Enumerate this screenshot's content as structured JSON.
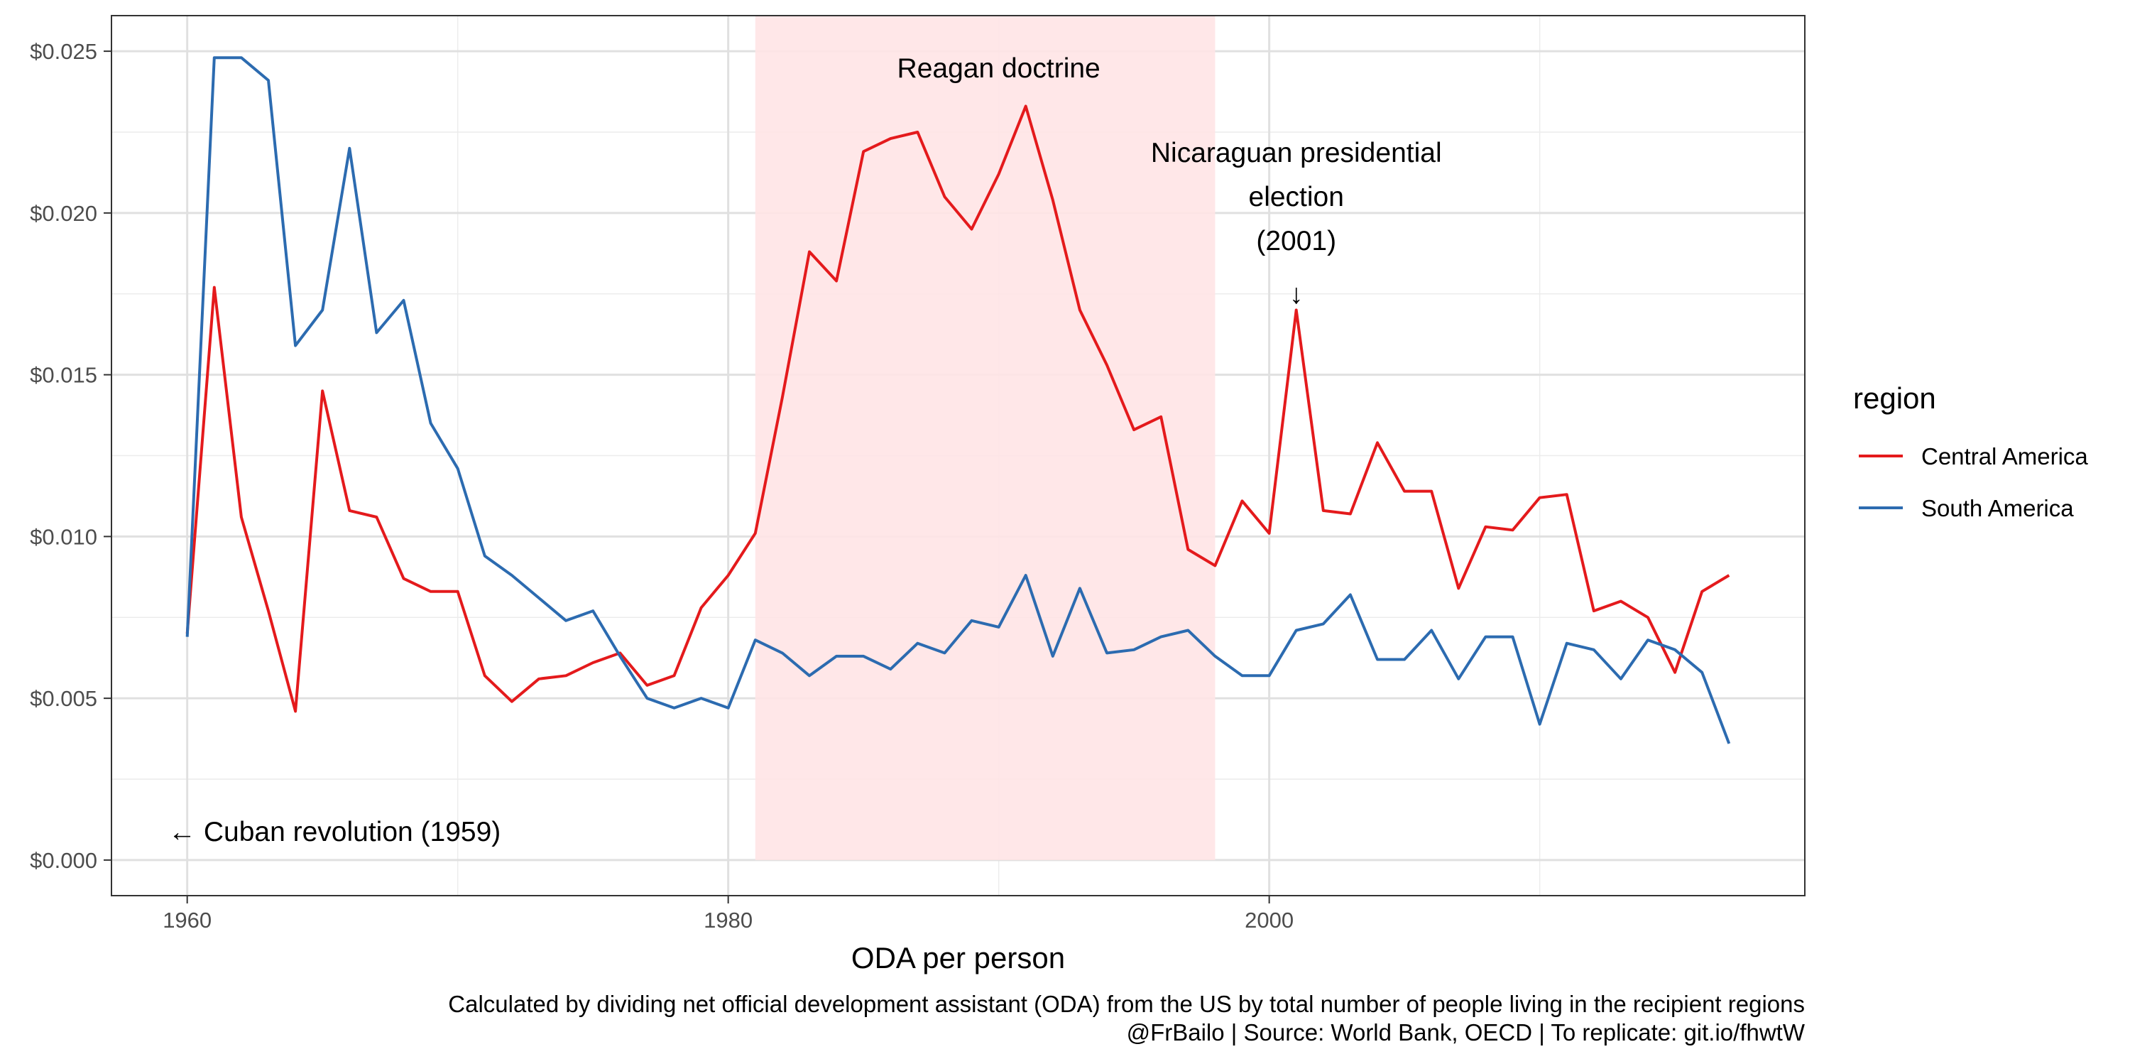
{
  "chart_data": {
    "type": "line",
    "title": "",
    "xlabel": "ODA per person",
    "ylabel": "",
    "xlim": [
      1957.2,
      2019.8
    ],
    "ylim": [
      -0.0011,
      0.0261
    ],
    "x_ticks": [
      1960,
      1980,
      2000
    ],
    "x_tick_labels": [
      "1960",
      "1980",
      "2000"
    ],
    "y_ticks": [
      0,
      0.005,
      0.01,
      0.015,
      0.02,
      0.025
    ],
    "y_tick_labels": [
      "$0.000",
      "$0.005",
      "$0.010",
      "$0.015",
      "$0.020",
      "$0.025"
    ],
    "grid": true,
    "legend": {
      "title": "region",
      "position": "right"
    },
    "series": [
      {
        "name": "Central America",
        "color": "#E41A1C",
        "x": [
          1960,
          1961,
          1962,
          1963,
          1964,
          1965,
          1966,
          1967,
          1968,
          1969,
          1970,
          1971,
          1972,
          1973,
          1974,
          1975,
          1976,
          1977,
          1978,
          1979,
          1980,
          1981,
          1982,
          1983,
          1984,
          1985,
          1986,
          1987,
          1988,
          1989,
          1990,
          1991,
          1992,
          1993,
          1994,
          1995,
          1996,
          1997,
          1998,
          1999,
          2000,
          2001,
          2002,
          2003,
          2004,
          2005,
          2006,
          2007,
          2008,
          2009,
          2010,
          2011,
          2012,
          2013,
          2014,
          2015,
          2016,
          2017
        ],
        "values": [
          0.007,
          0.0177,
          0.0106,
          0.0077,
          0.0046,
          0.0145,
          0.0108,
          0.0106,
          0.0087,
          0.0083,
          0.0083,
          0.0057,
          0.0049,
          0.0056,
          0.0057,
          0.0061,
          0.0064,
          0.0054,
          0.0057,
          0.0078,
          0.0088,
          0.0101,
          0.0143,
          0.0188,
          0.0179,
          0.0219,
          0.0223,
          0.0225,
          0.0205,
          0.0195,
          0.0212,
          0.0233,
          0.0204,
          0.017,
          0.0153,
          0.0133,
          0.0137,
          0.0096,
          0.0091,
          0.0111,
          0.0101,
          0.017,
          0.0108,
          0.0107,
          0.0129,
          0.0114,
          0.0114,
          0.0084,
          0.0103,
          0.0102,
          0.0112,
          0.0113,
          0.0077,
          0.008,
          0.0075,
          0.0058,
          0.0083,
          0.0088
        ]
      },
      {
        "name": "South America",
        "color": "#2C6BB0",
        "x": [
          1960,
          1961,
          1962,
          1963,
          1964,
          1965,
          1966,
          1967,
          1968,
          1969,
          1970,
          1971,
          1972,
          1973,
          1974,
          1975,
          1976,
          1977,
          1978,
          1979,
          1980,
          1981,
          1982,
          1983,
          1984,
          1985,
          1986,
          1987,
          1988,
          1989,
          1990,
          1991,
          1992,
          1993,
          1994,
          1995,
          1996,
          1997,
          1998,
          1999,
          2000,
          2001,
          2002,
          2003,
          2004,
          2005,
          2006,
          2007,
          2008,
          2009,
          2010,
          2011,
          2012,
          2013,
          2014,
          2015,
          2016,
          2017
        ],
        "values": [
          0.0069,
          0.0248,
          0.0248,
          0.0241,
          0.0159,
          0.017,
          0.022,
          0.0163,
          0.0173,
          0.0135,
          0.0121,
          0.0094,
          0.0088,
          0.0081,
          0.0074,
          0.0077,
          0.0063,
          0.005,
          0.0047,
          0.005,
          0.0047,
          0.0068,
          0.0064,
          0.0057,
          0.0063,
          0.0063,
          0.0059,
          0.0067,
          0.0064,
          0.0074,
          0.0072,
          0.0088,
          0.0063,
          0.0084,
          0.0064,
          0.0065,
          0.0069,
          0.0071,
          0.0063,
          0.0057,
          0.0057,
          0.0071,
          0.0073,
          0.0082,
          0.0062,
          0.0062,
          0.0071,
          0.0056,
          0.0069,
          0.0069,
          0.0042,
          0.0067,
          0.0065,
          0.0056,
          0.0068,
          0.0065,
          0.0058,
          0.0036
        ]
      }
    ],
    "shaded_region": {
      "x_start": 1981,
      "x_end": 1998,
      "color": "#FFE4E6"
    },
    "annotations": [
      {
        "id": "reagan",
        "text": "Reagan doctrine",
        "x": 1990,
        "y": 0.0245
      },
      {
        "id": "nicaragua",
        "lines": [
          "Nicaraguan presidential",
          "election",
          "(2001)"
        ],
        "arrow": "↓",
        "x": 2001,
        "y": 0.0173
      },
      {
        "id": "cuba",
        "text": "← Cuban revolution (1959)",
        "x": 1959.3,
        "y": 0.0009
      }
    ],
    "caption": [
      "Calculated by dividing net official development assistant (ODA) from the US by total number of people living in the recipient regions",
      "@FrBailo | Source: World Bank, OECD | To replicate: git.io/fhwtW"
    ]
  }
}
